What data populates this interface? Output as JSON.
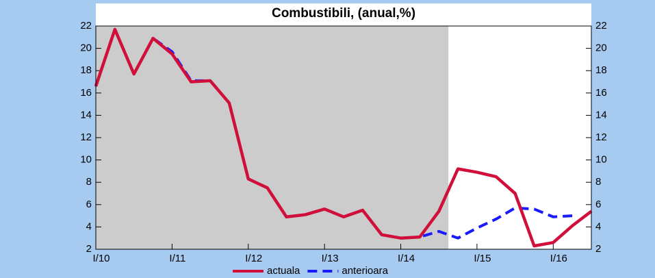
{
  "chart_data": {
    "type": "line",
    "title": "Combustibili, (anual,%)",
    "categories": [
      "I/10",
      null,
      null,
      null,
      "I/11",
      null,
      null,
      null,
      "I/12",
      null,
      null,
      null,
      "I/13",
      null,
      null,
      null,
      "I/14",
      null,
      null,
      null,
      "I/15",
      null,
      null,
      null,
      "I/16",
      null,
      null
    ],
    "series": [
      {
        "name": "actuala",
        "color": "#d0103a",
        "dash": false,
        "values": [
          16.6,
          21.7,
          17.7,
          20.9,
          19.5,
          17.0,
          17.1,
          15.1,
          8.3,
          7.5,
          4.9,
          5.1,
          5.6,
          4.9,
          5.5,
          3.3,
          3.0,
          3.1,
          5.4,
          9.2,
          8.9,
          8.5,
          7.0,
          2.3,
          2.6,
          4.1,
          5.4
        ]
      },
      {
        "name": "anterioara",
        "color": "#1a1aff",
        "dash": true,
        "values": [
          16.6,
          21.7,
          17.7,
          20.9,
          19.7,
          17.1,
          17.1,
          15.1,
          8.3,
          7.5,
          4.9,
          5.1,
          5.6,
          4.9,
          5.5,
          3.3,
          3.0,
          3.1,
          3.6,
          3.0,
          3.9,
          4.7,
          5.7,
          5.6,
          4.9,
          5.0,
          null
        ]
      }
    ],
    "ylim": [
      2,
      22
    ],
    "yticks": [
      2,
      4,
      6,
      8,
      10,
      12,
      14,
      16,
      18,
      20,
      22
    ],
    "y2lim": [
      2,
      22
    ],
    "y2ticks": [
      2,
      4,
      6,
      8,
      10,
      12,
      14,
      16,
      18,
      20,
      22
    ],
    "shaded_range": [
      0,
      18.5
    ],
    "shade_color": "#cccccc",
    "legend": "bottom"
  }
}
